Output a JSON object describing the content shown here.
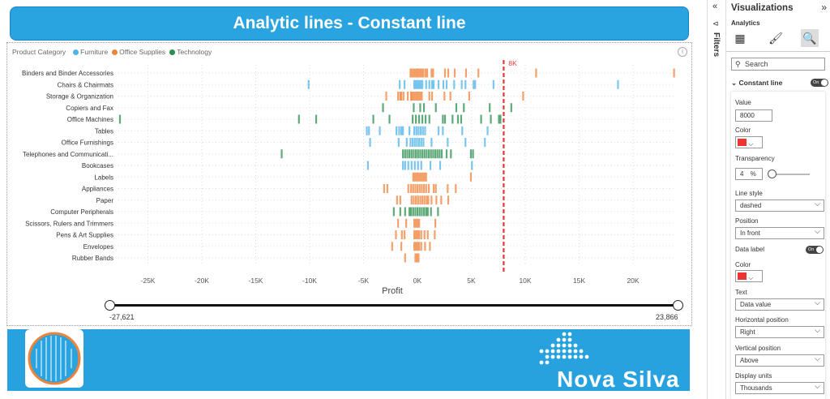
{
  "report": {
    "title": "Analytic lines - Constant line"
  },
  "legend": {
    "title": "Product Category",
    "items": [
      {
        "label": "Furniture",
        "color": "#4fb3ea"
      },
      {
        "label": "Office Supplies",
        "color": "#f0833a"
      },
      {
        "label": "Technology",
        "color": "#2a8e4d"
      }
    ]
  },
  "chart_data": {
    "type": "scatter",
    "xlabel": "Profit",
    "ylabel": "",
    "xlim": [
      -27621,
      23866
    ],
    "x_ticks": [
      "-25K",
      "-20K",
      "-15K",
      "-10K",
      "-5K",
      "0K",
      "5K",
      "10K",
      "15K",
      "20K"
    ],
    "grid": true,
    "constant_line": {
      "value": 8000,
      "label": "8K",
      "color": "#e83a3a",
      "style": "dashed",
      "position": "In front"
    },
    "categories": [
      {
        "name": "Binders and Binder Accessories",
        "group": "Office Supplies",
        "values": [
          -650,
          -500,
          -350,
          -200,
          -50,
          100,
          250,
          400,
          550,
          750,
          900,
          1300,
          1450,
          2550,
          2850,
          3450,
          4500,
          5650,
          11000,
          23800
        ]
      },
      {
        "name": "Chairs & Chairmats",
        "group": "Furniture",
        "values": [
          -10100,
          -1650,
          -1200,
          -300,
          -150,
          0,
          150,
          300,
          450,
          800,
          1100,
          1350,
          1500,
          1950,
          2400,
          2700,
          3400,
          4100,
          4450,
          5200,
          5350,
          7050,
          18600
        ]
      },
      {
        "name": "Storage & Organization",
        "group": "Office Supplies",
        "values": [
          -2900,
          -1800,
          -1600,
          -1500,
          -1300,
          -900,
          -600,
          -500,
          -350,
          -200,
          -50,
          100,
          250,
          400,
          1100,
          1350,
          2500,
          3050,
          4800,
          9800
        ]
      },
      {
        "name": "Copiers and Fax",
        "group": "Technology",
        "values": [
          -3200,
          -350,
          250,
          600,
          1700,
          3600,
          4300,
          6700,
          8700
        ]
      },
      {
        "name": "Office Machines",
        "group": "Technology",
        "values": [
          -27600,
          -11000,
          -9400,
          -4100,
          -2600,
          -450,
          -150,
          150,
          450,
          750,
          1100,
          2350,
          2550,
          3250,
          3750,
          4050,
          5900,
          6800,
          7550,
          7700
        ]
      },
      {
        "name": "Tables",
        "group": "Furniture",
        "values": [
          -4700,
          -4500,
          -3500,
          -1950,
          -1700,
          -1500,
          -1350,
          -750,
          -300,
          -100,
          100,
          300,
          500,
          700,
          1950,
          2350,
          4150,
          6500
        ]
      },
      {
        "name": "Office Furnishings",
        "group": "Furniture",
        "values": [
          -4400,
          -1750,
          -1000,
          -650,
          -450,
          -250,
          -50,
          150,
          350,
          550,
          1300,
          2800,
          4450,
          6250
        ]
      },
      {
        "name": "Telephones and Communicati...",
        "group": "Technology",
        "values": [
          -12600,
          -1350,
          -1150,
          -950,
          -750,
          -550,
          -350,
          -150,
          50,
          250,
          450,
          650,
          850,
          1050,
          1250,
          1450,
          1650,
          1850,
          2050,
          2250,
          2700,
          3100,
          4950,
          5150
        ]
      },
      {
        "name": "Bookcases",
        "group": "Furniture",
        "values": [
          -4600,
          -1350,
          -1150,
          -850,
          -550,
          -250,
          50,
          350,
          1200,
          2100,
          5050
        ]
      },
      {
        "name": "Labels",
        "group": "Office Supplies",
        "values": [
          -400,
          -250,
          -100,
          50,
          200,
          350,
          500,
          650,
          800,
          4950
        ]
      },
      {
        "name": "Appliances",
        "group": "Office Supplies",
        "values": [
          -3100,
          -2800,
          -850,
          -600,
          -400,
          -200,
          0,
          200,
          400,
          600,
          800,
          1050,
          1500,
          1700,
          2800,
          3550
        ]
      },
      {
        "name": "Paper",
        "group": "Office Supplies",
        "values": [
          -1900,
          -1600,
          -550,
          -350,
          -150,
          50,
          250,
          450,
          650,
          850,
          1000,
          1300,
          1750,
          2200,
          2850
        ]
      },
      {
        "name": "Computer Peripherals",
        "group": "Technology",
        "values": [
          -2200,
          -1600,
          -1150,
          -750,
          -600,
          -400,
          -200,
          0,
          200,
          400,
          600,
          800,
          950,
          1250,
          1900
        ]
      },
      {
        "name": "Scissors, Rulers and Trimmers",
        "group": "Office Supplies",
        "values": [
          -1800,
          -1050,
          -300,
          -150,
          0,
          150,
          1650
        ]
      },
      {
        "name": "Pens & Art Supplies",
        "group": "Office Supplies",
        "values": [
          -2000,
          -1450,
          -1200,
          -300,
          -150,
          0,
          150,
          350,
          650,
          950,
          1600
        ]
      },
      {
        "name": "Envelopes",
        "group": "Office Supplies",
        "values": [
          -2350,
          -1500,
          -300,
          -150,
          0,
          150,
          350,
          700,
          1150
        ]
      },
      {
        "name": "Rubber Bands",
        "group": "Office Supplies",
        "values": [
          -1150,
          -200,
          -50,
          100
        ]
      }
    ]
  },
  "slider": {
    "min_label": "-27,621",
    "max_label": "23,866"
  },
  "banner": {
    "brand": "Nova Silva"
  },
  "filters": {
    "label": "Filters"
  },
  "pane": {
    "title": "Visualizations",
    "subtitle": "Analytics",
    "search_placeholder": "Search",
    "section": "Constant line",
    "section_toggle": "On",
    "value_label": "Value",
    "value": "8000",
    "color_label": "Color",
    "color": "#e83a3a",
    "transparency_label": "Transparency",
    "transparency": "4",
    "transparency_unit": "%",
    "line_style_label": "Line style",
    "line_style": "dashed",
    "position_label": "Position",
    "position": "In front",
    "data_label_label": "Data label",
    "data_label_toggle": "On",
    "label_color_label": "Color",
    "text_label": "Text",
    "text": "Data value",
    "hpos_label": "Horizontal position",
    "hpos": "Right",
    "vpos_label": "Vertical position",
    "vpos": "Above",
    "units_label": "Display units",
    "units": "Thousands"
  }
}
